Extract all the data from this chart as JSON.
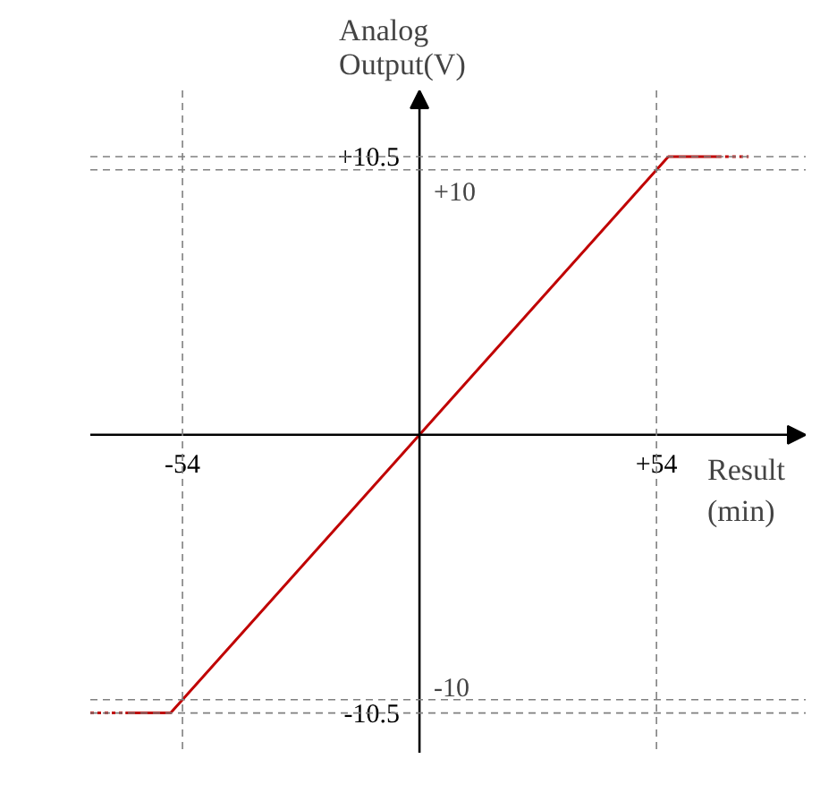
{
  "chart_data": {
    "type": "line",
    "xlabel": "Result\n(min)",
    "ylabel": "Analog\nOutput(V)",
    "xlim": [
      -75,
      88
    ],
    "ylim": [
      -12,
      13
    ],
    "grid": false,
    "xticks": [
      -54,
      {
        "value": 54,
        "label": "+54"
      }
    ],
    "yticks": [
      {
        "value": 10.5,
        "label": "+10.5"
      },
      -10.5
    ],
    "series": [
      {
        "x": [
          -67,
          -56.7,
          56.7,
          68
        ],
        "values": [
          -10.5,
          -10.5,
          10.5,
          10.5
        ],
        "color": "#c00000",
        "line_style": "solid"
      },
      {
        "x": [
          -75,
          -67
        ],
        "values": [
          -10.5,
          -10.5
        ],
        "color": "#c00000",
        "line_style": "dotted"
      },
      {
        "x": [
          68,
          75
        ],
        "values": [
          10.5,
          10.5
        ],
        "color": "#c00000",
        "line_style": "dotted"
      }
    ],
    "ref_lines": [
      {
        "axis": "x",
        "value": -54,
        "color": "#808080",
        "line_style": "dashed"
      },
      {
        "axis": "x",
        "value": 54,
        "color": "#808080",
        "line_style": "dashed"
      },
      {
        "axis": "y",
        "value": 10.5,
        "color": "#808080",
        "line_style": "dashed"
      },
      {
        "axis": "y",
        "value": 10,
        "label": "+10",
        "color": "#808080",
        "line_style": "dashed"
      },
      {
        "axis": "y",
        "value": -10,
        "label": "-10",
        "color": "#808080",
        "line_style": "dashed"
      },
      {
        "axis": "y",
        "value": -10.5,
        "color": "#808080",
        "line_style": "dashed"
      }
    ]
  }
}
